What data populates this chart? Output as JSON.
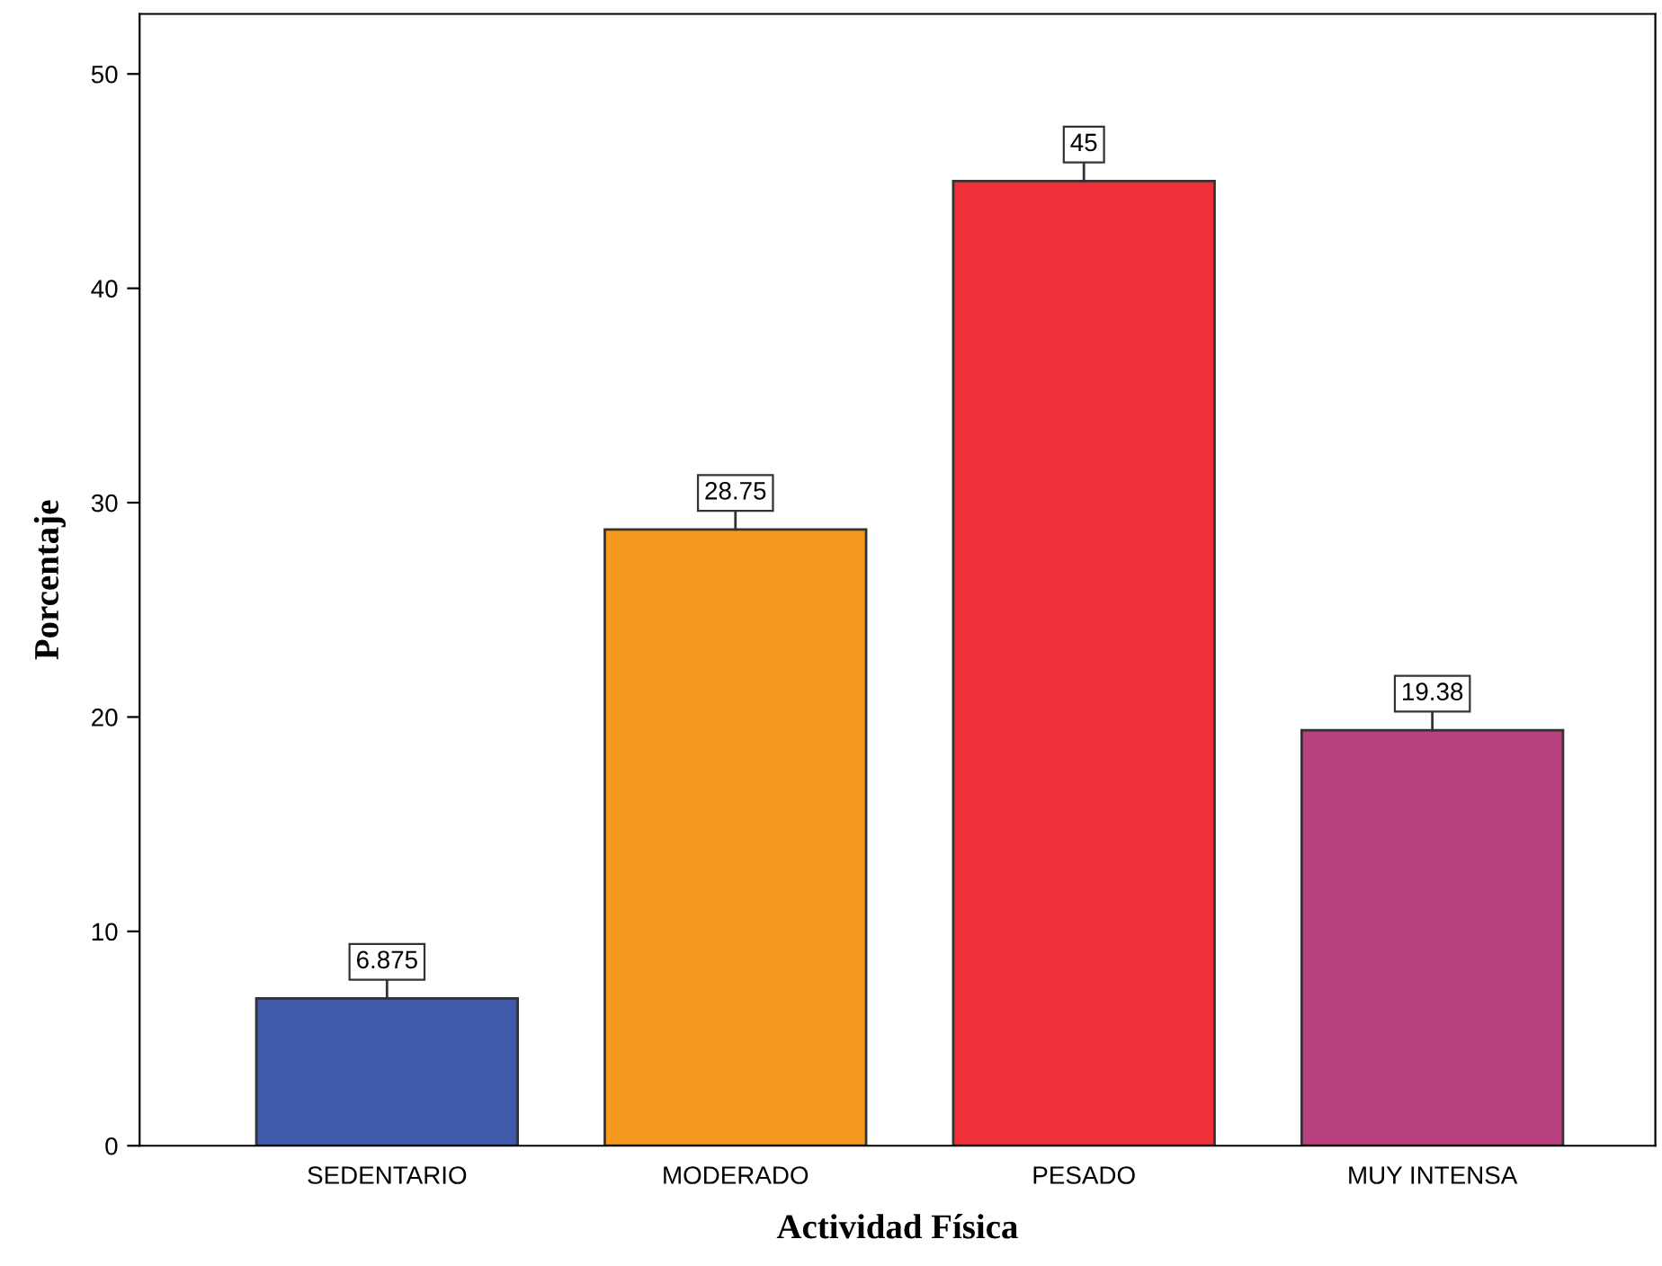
{
  "chart_data": {
    "type": "bar",
    "xlabel": "Actividad Física",
    "ylabel": "Porcentaje",
    "categories": [
      "SEDENTARIO",
      "MODERADO",
      "PESADO",
      "MUY INTENSA"
    ],
    "values": [
      6.875,
      28.75,
      45,
      19.38
    ],
    "value_labels": [
      "6.875",
      "28.75",
      "45",
      "19.38"
    ],
    "colors": [
      "#3f5aa8",
      "#f7991f",
      "#ef3038",
      "#b9407f"
    ],
    "ylim": [
      0,
      52.8
    ],
    "yticks": [
      0,
      10,
      20,
      30,
      40,
      50
    ],
    "grid": false
  }
}
